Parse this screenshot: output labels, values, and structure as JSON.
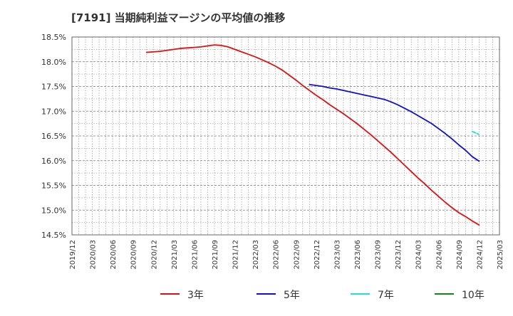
{
  "chart_data": {
    "type": "line",
    "title": "[7191]  当期純利益マージンの平均値の推移",
    "xlabel": "",
    "ylabel": "",
    "x_ticks": [
      "2019/12",
      "2020/03",
      "2020/06",
      "2020/09",
      "2020/12",
      "2021/03",
      "2021/06",
      "2021/09",
      "2021/12",
      "2022/03",
      "2022/06",
      "2022/09",
      "2022/12",
      "2023/03",
      "2023/06",
      "2023/09",
      "2023/12",
      "2024/03",
      "2024/06",
      "2024/09",
      "2024/12",
      "2025/03"
    ],
    "y_ticks": [
      "14.5%",
      "15.0%",
      "15.5%",
      "16.0%",
      "16.5%",
      "17.0%",
      "17.5%",
      "18.0%",
      "18.5%"
    ],
    "ylim": [
      14.5,
      18.5
    ],
    "grid": true,
    "legend_position": "bottom",
    "series": [
      {
        "name": "3年",
        "color": "#dd1111",
        "x": [
          "2020/11",
          "2020/12",
          "2021/01",
          "2021/02",
          "2021/03",
          "2021/04",
          "2021/05",
          "2021/06",
          "2021/07",
          "2021/08",
          "2021/09",
          "2021/10",
          "2021/11",
          "2021/12",
          "2022/01",
          "2022/02",
          "2022/03",
          "2022/04",
          "2022/05",
          "2022/06",
          "2022/07",
          "2022/08",
          "2022/09",
          "2022/10",
          "2022/11",
          "2022/12",
          "2023/01",
          "2023/02",
          "2023/03",
          "2023/04",
          "2023/05",
          "2023/06",
          "2023/07",
          "2023/08",
          "2023/09",
          "2023/10",
          "2023/11",
          "2023/12",
          "2024/01",
          "2024/02",
          "2024/03",
          "2024/04",
          "2024/05",
          "2024/06",
          "2024/07",
          "2024/08",
          "2024/09",
          "2024/10",
          "2024/11",
          "2024/12"
        ],
        "values": [
          18.19,
          18.2,
          18.21,
          18.23,
          18.25,
          18.27,
          18.28,
          18.29,
          18.3,
          18.32,
          18.34,
          18.33,
          18.3,
          18.25,
          18.2,
          18.15,
          18.1,
          18.04,
          17.98,
          17.91,
          17.83,
          17.73,
          17.63,
          17.52,
          17.42,
          17.32,
          17.23,
          17.13,
          17.04,
          16.95,
          16.85,
          16.75,
          16.64,
          16.53,
          16.41,
          16.29,
          16.17,
          16.04,
          15.91,
          15.78,
          15.65,
          15.53,
          15.4,
          15.28,
          15.16,
          15.05,
          14.95,
          14.87,
          14.78,
          14.7
        ]
      },
      {
        "name": "5年",
        "color": "#1111cc",
        "x": [
          "2022/11",
          "2022/12",
          "2023/01",
          "2023/02",
          "2023/03",
          "2023/04",
          "2023/05",
          "2023/06",
          "2023/07",
          "2023/08",
          "2023/09",
          "2023/10",
          "2023/11",
          "2023/12",
          "2024/01",
          "2024/02",
          "2024/03",
          "2024/04",
          "2024/05",
          "2024/06",
          "2024/07",
          "2024/08",
          "2024/09",
          "2024/10",
          "2024/11",
          "2024/12"
        ],
        "values": [
          17.54,
          17.52,
          17.5,
          17.47,
          17.45,
          17.42,
          17.39,
          17.36,
          17.33,
          17.3,
          17.27,
          17.24,
          17.19,
          17.13,
          17.06,
          16.99,
          16.91,
          16.83,
          16.75,
          16.65,
          16.55,
          16.44,
          16.32,
          16.21,
          16.08,
          15.99
        ]
      },
      {
        "name": "7年",
        "color": "#22dddd",
        "x": [
          "2024/11",
          "2024/12"
        ],
        "values": [
          16.59,
          16.53
        ]
      },
      {
        "name": "10年",
        "color": "#118811",
        "x": [],
        "values": []
      }
    ]
  }
}
